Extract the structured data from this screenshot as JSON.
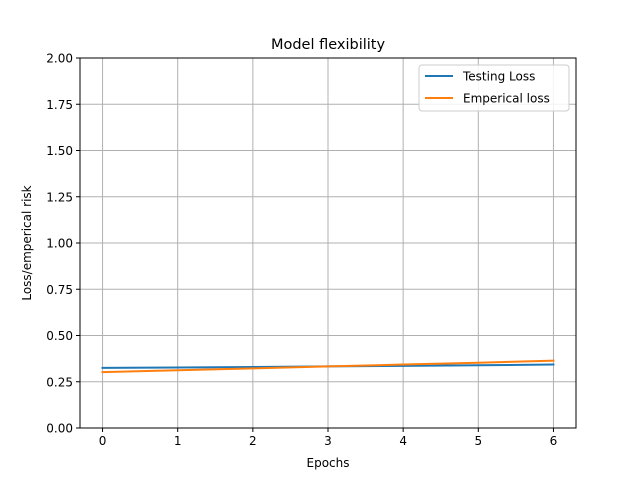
{
  "chart_data": {
    "type": "line",
    "title": "Model flexibility",
    "xlabel": "Epochs",
    "ylabel": "Loss/emperical risk",
    "xlim": [
      -0.3,
      6.3
    ],
    "ylim": [
      0,
      2
    ],
    "xticks": [
      0,
      1,
      2,
      3,
      4,
      5,
      6
    ],
    "xtick_labels": [
      "0",
      "1",
      "2",
      "3",
      "4",
      "5",
      "6"
    ],
    "yticks": [
      0,
      0.25,
      0.5,
      0.75,
      1.0,
      1.25,
      1.5,
      1.75,
      2.0
    ],
    "ytick_labels": [
      "0.00",
      "0.25",
      "0.50",
      "0.75",
      "1.00",
      "1.25",
      "1.50",
      "1.75",
      "2.00"
    ],
    "grid": true,
    "legend_position": "top-right",
    "x": [
      0,
      1,
      2,
      3,
      4,
      5,
      6
    ],
    "series": [
      {
        "name": "Testing Loss",
        "color": "#1f77b4",
        "values": [
          0.325,
          0.327,
          0.33,
          0.333,
          0.336,
          0.339,
          0.343
        ]
      },
      {
        "name": "Emperical loss",
        "color": "#ff7f0e",
        "values": [
          0.302,
          0.312,
          0.322,
          0.333,
          0.343,
          0.353,
          0.364
        ]
      }
    ]
  }
}
